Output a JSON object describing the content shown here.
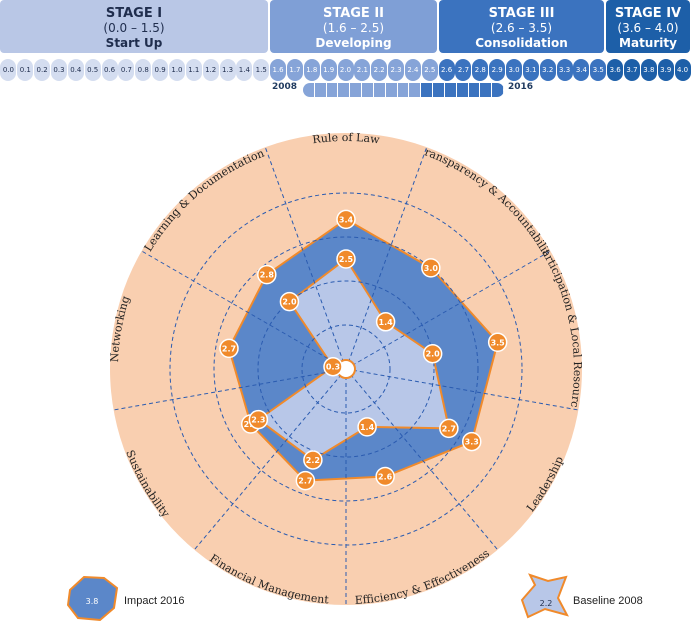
{
  "stages": [
    {
      "title": "STAGE I",
      "range": "(0.0 – 1.5)",
      "name": "Start Up",
      "bg": "#b9c7e6",
      "fg": "#1f2d4d"
    },
    {
      "title": "STAGE II",
      "range": "(1.6 – 2.5)",
      "name": "Developing",
      "bg": "#7f9fd6",
      "fg": "#ffffff"
    },
    {
      "title": "STAGE III",
      "range": "(2.6 – 3.5)",
      "name": "Consolidation",
      "bg": "#3b73bf",
      "fg": "#ffffff"
    },
    {
      "title": "STAGE IV",
      "range": "(3.6 – 4.0)",
      "name": "Maturity",
      "bg": "#1d5fa8",
      "fg": "#ffffff"
    }
  ],
  "scale_ticks": [
    "0.0",
    "0.1",
    "0.2",
    "0.3",
    "0.4",
    "0.5",
    "0.6",
    "0.7",
    "0.8",
    "0.9",
    "1.0",
    "1.1",
    "1.2",
    "1.3",
    "1.4",
    "1.5",
    "1.6",
    "1.7",
    "1.8",
    "1.9",
    "2.0",
    "2.1",
    "2.2",
    "2.3",
    "2.4",
    "2.5",
    "2.6",
    "2.7",
    "2.8",
    "2.9",
    "3.0",
    "3.1",
    "3.2",
    "3.3",
    "3.4",
    "3.5",
    "3.6",
    "3.7",
    "3.8",
    "3.9",
    "4.0"
  ],
  "timeline": {
    "start_label": "2008",
    "end_label": "2016",
    "start_value": 1.6,
    "end_value": 3.2
  },
  "chart_data": {
    "type": "radar",
    "title": "",
    "rmax": 4.0,
    "axes": [
      "Rule of Law",
      "Transparency & Accountability",
      "Participation & Local Resources",
      "Leadership",
      "Efficiency & Effectiveness",
      "Financial Management",
      "Sustainability",
      "Networking",
      "Learning & Documentation"
    ],
    "series": [
      {
        "name": "Impact 2016",
        "values": [
          3.4,
          3.0,
          3.5,
          3.3,
          2.6,
          2.7,
          2.5,
          2.7,
          2.8
        ],
        "fill": "#5b87c9",
        "stroke": "#f08a2b"
      },
      {
        "name": "Baseline 2008",
        "values": [
          2.5,
          1.4,
          2.0,
          2.7,
          1.4,
          2.2,
          2.3,
          0.3,
          2.0
        ],
        "fill": "#b8c7e8",
        "stroke": "#f08a2b"
      }
    ],
    "point_labels": {
      "impact": [
        "3.4",
        "3.0",
        "3.5",
        "3.3",
        "2.6",
        "2.7",
        "2.5",
        "2.7",
        "2.8"
      ],
      "baseline": [
        "2.5",
        "1.4",
        "2.0",
        "2.7",
        "1.4",
        "2.2",
        "2.3",
        "0.3",
        "2.0"
      ]
    },
    "grid": true,
    "colors": {
      "outer_ring": "#f9cfb0",
      "marker": "#f08a2b",
      "grid": "#2a5bb0"
    }
  },
  "legend": {
    "impact": {
      "label": "Impact 2016",
      "sample": "3.8"
    },
    "baseline": {
      "label": "Baseline 2008",
      "sample": "2.2"
    }
  }
}
